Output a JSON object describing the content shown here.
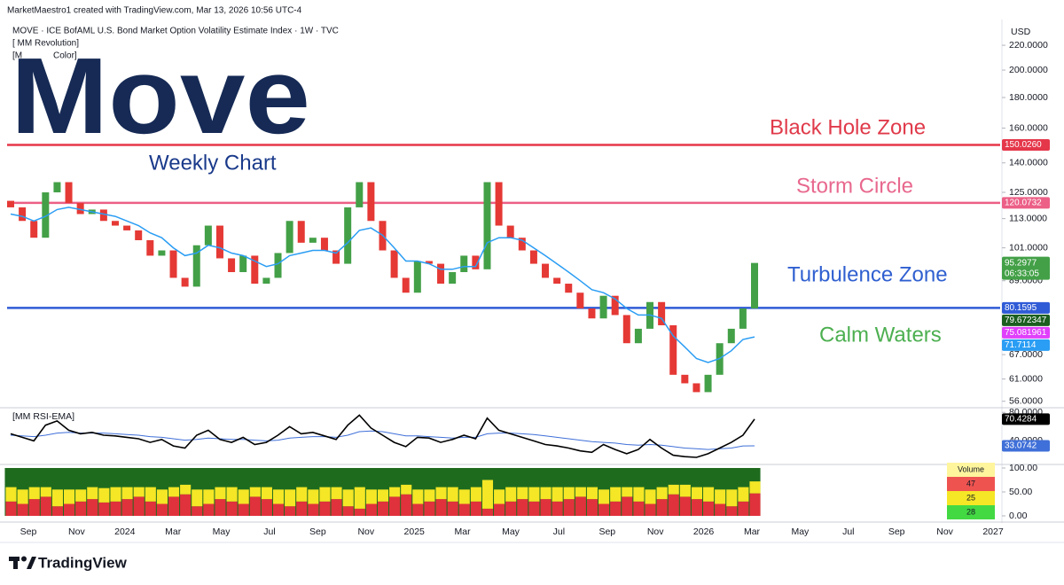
{
  "header": {
    "credit": "MarketMaestro1 created with TradingView.com, Mar 13, 2026 10:56 UTC-4",
    "symbol": "MOVE · ICE BofAML U.S. Bond Market Option Volatility Estimate Index · 1W · TVC",
    "indicators": [
      "[ MM Revolution]",
      "[M",
      "Color]"
    ],
    "logo": "Move"
  },
  "footer": {
    "brand": "TradingView"
  },
  "chart_data": [
    {
      "type": "candlestick",
      "currency": "USD",
      "log_scale": true,
      "up_color": "#43a047",
      "down_color": "#e53935",
      "x_labels": [
        "Sep",
        "Nov",
        "2024",
        "Mar",
        "May",
        "Jul",
        "Sep",
        "Nov",
        "2025",
        "Mar",
        "May",
        "Jul",
        "Sep",
        "Nov",
        "2026",
        "Mar",
        "May",
        "Jul",
        "Sep",
        "Nov",
        "2027"
      ],
      "open": [
        121,
        118,
        112,
        105,
        125,
        130,
        120,
        115,
        117,
        112,
        110,
        108,
        104,
        98,
        100,
        90,
        87,
        102,
        110,
        97,
        92,
        98,
        88,
        90,
        99,
        112,
        103,
        105,
        100,
        95,
        118,
        130,
        112,
        100,
        90,
        85,
        96,
        95,
        88,
        92,
        98,
        93,
        130,
        110,
        105,
        100,
        95,
        90,
        88,
        85,
        80,
        77,
        84,
        78,
        70,
        74,
        82,
        75,
        62,
        60,
        58,
        62,
        70,
        74,
        80
      ],
      "close": [
        118,
        112,
        105,
        125,
        130,
        120,
        115,
        117,
        112,
        110,
        108,
        104,
        98,
        100,
        90,
        87,
        102,
        110,
        97,
        92,
        98,
        88,
        90,
        99,
        112,
        103,
        105,
        100,
        95,
        118,
        130,
        112,
        100,
        90,
        85,
        96,
        95,
        88,
        92,
        98,
        93,
        130,
        110,
        105,
        100,
        95,
        90,
        88,
        85,
        80,
        77,
        84,
        78,
        70,
        74,
        82,
        75,
        62,
        60,
        58,
        62,
        70,
        74,
        80,
        95.2977
      ],
      "ema": {
        "color": "#2a9df4",
        "values": [
          115,
          114,
          112,
          114,
          117,
          118,
          117,
          116,
          115,
          114,
          112,
          110,
          107,
          105,
          101,
          98,
          99,
          102,
          101,
          99,
          98,
          96,
          94,
          95,
          98,
          99,
          100,
          100,
          99,
          103,
          108,
          109,
          106,
          101,
          96,
          96,
          95,
          93,
          93,
          94,
          94,
          103,
          105,
          105,
          104,
          101,
          98,
          95,
          92,
          89,
          86,
          85,
          83,
          80,
          78,
          78,
          77,
          72,
          69,
          66,
          65,
          66,
          68,
          71,
          71.7114
        ]
      },
      "last_tag": {
        "color": "#43a047",
        "countdown": "06:33:05"
      },
      "ylim": [
        55,
        238
      ],
      "yticks": [
        {
          "value": 56,
          "label": "56.0000"
        },
        {
          "value": 61,
          "label": "61.0000"
        },
        {
          "value": 67,
          "label": "67.0000"
        },
        {
          "value": 89,
          "label": "89.0000"
        },
        {
          "value": 101,
          "label": "101.0000"
        },
        {
          "value": 113,
          "label": "113.0000"
        },
        {
          "value": 125,
          "label": "125.0000"
        },
        {
          "value": 140,
          "label": "140.0000"
        },
        {
          "value": 160,
          "label": "160.0000"
        },
        {
          "value": 180,
          "label": "180.0000"
        },
        {
          "value": 200,
          "label": "200.0000"
        },
        {
          "value": 220,
          "label": "220.0000"
        }
      ],
      "levels": [
        {
          "value": 150.026,
          "label": "150.0260",
          "color": "#e5374a"
        },
        {
          "value": 120.0732,
          "label": "120.0732",
          "color": "#ec5f86"
        },
        {
          "value": 80.1595,
          "label": "80.1595",
          "color": "#2f5bd6"
        }
      ],
      "price_tags": [
        {
          "value": 79.672347,
          "color": "#1b5e20"
        },
        {
          "value": 75.081961,
          "color": "#e040fb"
        }
      ],
      "annotations": [
        {
          "text": "Weekly Chart",
          "color": "#1a3a8a"
        },
        {
          "text": "Black Hole Zone",
          "color": "#e03a4a"
        },
        {
          "text": "Storm Circle",
          "color": "#e8688e"
        },
        {
          "text": "Turbulence Zone",
          "color": "#2f5fd0"
        },
        {
          "text": "Calm Waters",
          "color": "#4caf50"
        }
      ]
    },
    {
      "type": "line",
      "title": "[MM RSI-EMA]",
      "ylim": [
        12,
        84
      ],
      "yticks": [
        {
          "value": 80,
          "label": "80.0000"
        },
        {
          "value": 40,
          "label": "40.0000"
        }
      ],
      "series": [
        {
          "name": "RSI",
          "color": "#000000",
          "values": [
            50,
            45,
            40,
            62,
            68,
            55,
            50,
            52,
            48,
            47,
            45,
            43,
            38,
            42,
            33,
            30,
            48,
            55,
            42,
            38,
            45,
            35,
            38,
            48,
            60,
            50,
            52,
            47,
            42,
            62,
            76,
            58,
            48,
            38,
            32,
            45,
            44,
            38,
            42,
            48,
            43,
            72,
            55,
            50,
            45,
            40,
            35,
            33,
            30,
            26,
            24,
            35,
            28,
            22,
            28,
            42,
            30,
            20,
            18,
            17,
            22,
            30,
            38,
            48,
            70.4284
          ]
        },
        {
          "name": "EMA",
          "color": "#3f6fd8",
          "values": [
            48,
            47,
            46,
            48,
            51,
            52,
            51,
            51,
            51,
            50,
            49,
            48,
            46,
            45,
            43,
            41,
            42,
            44,
            43,
            42,
            42,
            41,
            40,
            41,
            44,
            45,
            46,
            46,
            45,
            48,
            53,
            54,
            53,
            50,
            47,
            47,
            46,
            45,
            44,
            45,
            45,
            50,
            51,
            51,
            50,
            49,
            47,
            45,
            43,
            41,
            39,
            38,
            37,
            35,
            34,
            35,
            34,
            32,
            30,
            29,
            28,
            29,
            30,
            33,
            33.0742
          ]
        }
      ]
    },
    {
      "type": "stacked_bar",
      "ylim": [
        0,
        100
      ],
      "background_color": "#1e6b1e",
      "yticks": [
        {
          "value": 100,
          "label": "100.00"
        },
        {
          "value": 50,
          "label": "50.00"
        },
        {
          "value": 0,
          "label": "0.00"
        }
      ],
      "series": [
        {
          "name": "red",
          "color": "#e0323c",
          "values": [
            30,
            25,
            35,
            40,
            20,
            25,
            30,
            35,
            28,
            30,
            35,
            40,
            30,
            25,
            40,
            45,
            20,
            25,
            35,
            30,
            25,
            40,
            35,
            25,
            20,
            30,
            25,
            30,
            35,
            20,
            15,
            25,
            30,
            40,
            45,
            25,
            30,
            35,
            30,
            25,
            30,
            15,
            25,
            30,
            35,
            30,
            35,
            30,
            35,
            40,
            35,
            25,
            30,
            40,
            30,
            25,
            35,
            45,
            40,
            35,
            30,
            25,
            20,
            30,
            47
          ]
        },
        {
          "name": "yellow",
          "color": "#f5e626",
          "values": [
            30,
            30,
            25,
            20,
            35,
            30,
            25,
            25,
            30,
            30,
            25,
            20,
            30,
            30,
            20,
            20,
            35,
            30,
            25,
            30,
            30,
            20,
            25,
            30,
            35,
            30,
            30,
            30,
            25,
            35,
            45,
            30,
            25,
            20,
            20,
            30,
            25,
            25,
            30,
            30,
            30,
            60,
            30,
            30,
            25,
            30,
            25,
            30,
            25,
            20,
            25,
            30,
            30,
            20,
            30,
            30,
            25,
            20,
            25,
            25,
            30,
            30,
            35,
            30,
            25
          ]
        }
      ],
      "legend": {
        "title": "Volume",
        "values": [
          47,
          25,
          28
        ],
        "colors": [
          "#ef5350",
          "#f5e626",
          "#43d943"
        ],
        "title_color": "#fff59d"
      }
    }
  ]
}
